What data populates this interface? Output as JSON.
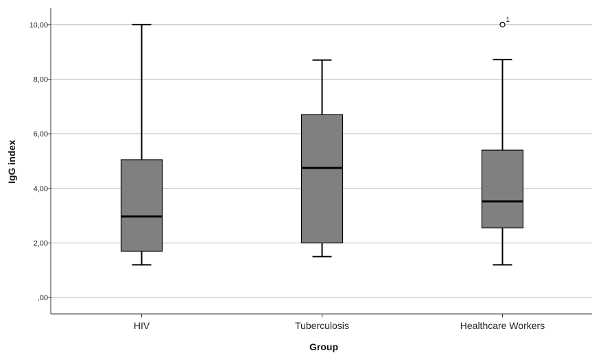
{
  "chart_data": {
    "type": "boxplot",
    "xlabel": "Group",
    "ylabel": "IgG index",
    "ylim": [
      -0.6,
      10.6
    ],
    "yticks": [
      0,
      2,
      4,
      6,
      8,
      10
    ],
    "ytick_labels": [
      ",00",
      "2,00",
      "4,00",
      "6,00",
      "8,00",
      "10,00"
    ],
    "grid": "horizontal",
    "colors": {
      "box_fill": "#808080",
      "stroke": "#000000",
      "grid": "#b3b3b3"
    },
    "categories": [
      "HIV",
      "Tuberculosis",
      "Healthcare Workers"
    ],
    "boxes": [
      {
        "name": "HIV",
        "min": 1.2,
        "q1": 1.7,
        "median": 2.97,
        "q3": 5.05,
        "max": 10.0,
        "outliers": []
      },
      {
        "name": "Tuberculosis",
        "min": 1.5,
        "q1": 2.0,
        "median": 4.75,
        "q3": 6.7,
        "max": 8.7,
        "outliers": []
      },
      {
        "name": "Healthcare Workers",
        "min": 1.2,
        "q1": 2.55,
        "median": 3.52,
        "q3": 5.4,
        "max": 8.72,
        "outliers": [
          {
            "value": 10.0,
            "label": "1"
          }
        ]
      }
    ]
  }
}
